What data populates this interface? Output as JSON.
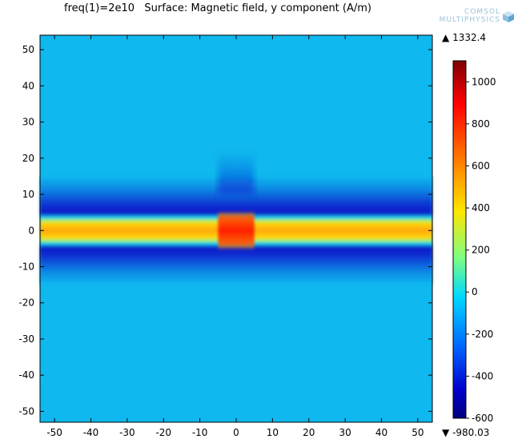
{
  "title_line": "freq(1)=2e10   Surface: Magnetic field, y component (A/m)",
  "logo": {
    "line1": "COMSOL",
    "line2": "MULTIPHYSICS"
  },
  "colorbar": {
    "max_label": "1332.4",
    "min_label": "-980.03",
    "ticks": [
      "1000",
      "800",
      "600",
      "400",
      "200",
      "0",
      "-200",
      "-400",
      "-600"
    ]
  },
  "colors": {
    "background_field": "#0fb8ee",
    "stripe_core": "#ff9b0a"
  },
  "chart_data": {
    "type": "heatmap",
    "title": "freq(1)=2e10   Surface: Magnetic field, y component (A/m)",
    "xlim": [
      -54,
      54
    ],
    "ylim": [
      -53,
      54
    ],
    "x_ticks": [
      "-50",
      "-40",
      "-30",
      "-20",
      "-10",
      "0",
      "10",
      "20",
      "30",
      "40",
      "50"
    ],
    "y_ticks": [
      "50",
      "40",
      "30",
      "20",
      "10",
      "0",
      "-10",
      "-20",
      "-30",
      "-40",
      "-50"
    ],
    "x_tick_values": [
      -50,
      -40,
      -30,
      -20,
      -10,
      0,
      10,
      20,
      30,
      40,
      50
    ],
    "y_tick_values": [
      50,
      40,
      30,
      20,
      10,
      0,
      -10,
      -20,
      -30,
      -40,
      -50
    ],
    "colorbar_range": [
      -600,
      1100
    ],
    "colorbar_tick_values": [
      1000,
      800,
      600,
      400,
      200,
      0,
      -200,
      -400,
      -600
    ],
    "colormap": "rainbow (blue to red)",
    "field_description": {
      "background_value": 0,
      "stripe_band_y": [
        -6,
        6
      ],
      "stripe_value": 550,
      "center_hotspot_x": [
        -5,
        5
      ],
      "center_hotspot_value": 1000,
      "negative_rims_y": [
        [
          8,
          12
        ],
        [
          -12,
          -8
        ]
      ],
      "negative_rim_value": -450,
      "negative_lobes_x": [
        -5,
        5
      ],
      "negative_lobes_y": [
        [
          10,
          22
        ],
        [
          -22,
          -10
        ]
      ],
      "negative_lobe_value": -250
    }
  }
}
